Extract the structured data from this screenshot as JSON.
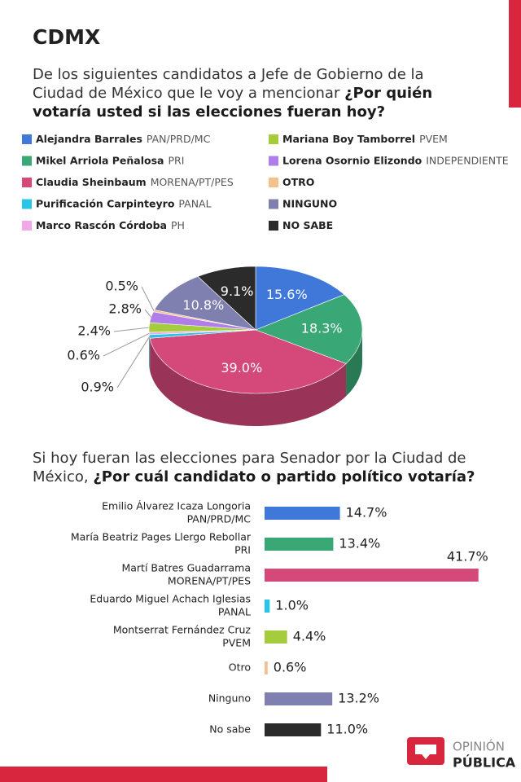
{
  "title": "CDMX",
  "logo": {
    "top": "OPINIÓN",
    "bottom": "PÚBLICA"
  },
  "chart_data": [
    {
      "type": "pie",
      "question": {
        "text": "De los siguientes candidatos a Jefe de Gobierno de la Ciudad de México que le voy a mencionar",
        "emphasis": "¿Por quién votaría usted si las elecciones fueran hoy?"
      },
      "categories": [
        "Alejandra Barrales",
        "Mikel Arriola Peñalosa",
        "Claudia Sheinbaum",
        "Purificación Carpinteyro",
        "Marco Rascón Córdoba",
        "Mariana Boy Tamborrel",
        "Lorena Osornio Elizondo",
        "OTRO",
        "NINGUNO",
        "NO SABE"
      ],
      "parties": [
        "PAN/PRD/MC",
        "PRI",
        "MORENA/PT/PES",
        "PANAL",
        "PH",
        "PVEM",
        "INDEPENDIENTE",
        null,
        null,
        null
      ],
      "values": [
        15.6,
        18.3,
        39.0,
        0.9,
        0.6,
        2.4,
        2.8,
        0.5,
        10.8,
        9.1
      ],
      "value_labels": [
        "15.6%",
        "18.3%",
        "39.0%",
        "0.9%",
        "0.6%",
        "2.4%",
        "2.8%",
        "0.5%",
        "10.8%",
        "9.1%"
      ],
      "colors": [
        "#3f78d8",
        "#3aa876",
        "#d4487a",
        "#29c5e6",
        "#f0a8e8",
        "#a5cc3c",
        "#b07ee8",
        "#f6c08e",
        "#8080b0",
        "#2b2b2b"
      ]
    },
    {
      "type": "hbar",
      "question": {
        "text": "Si hoy fueran las elecciones para Senador por la Ciudad de México,",
        "emphasis": "¿Por cuál candidato o partido político votaría?"
      },
      "categories": [
        "Emilio Álvarez Icaza Longoria",
        "María Beatriz Pages Llergo Rebollar",
        "Martí Batres Guadarrama",
        "Eduardo Miguel Achach Iglesias",
        "Montserrat Fernández Cruz",
        "Otro",
        "Ninguno",
        "No sabe"
      ],
      "parties": [
        "PAN/PRD/MC",
        "PRI",
        "MORENA/PT/PES",
        "PANAL",
        "PVEM",
        null,
        null,
        null
      ],
      "values": [
        14.7,
        13.4,
        41.7,
        1.0,
        4.4,
        0.6,
        13.2,
        11.0
      ],
      "value_labels": [
        "14.7%",
        "13.4%",
        "41.7%",
        "1.0%",
        "4.4%",
        "0.6%",
        "13.2%",
        "11.0%"
      ],
      "colors": [
        "#3f78d8",
        "#3aa876",
        "#d4487a",
        "#29c5e6",
        "#a5cc3c",
        "#f6c08e",
        "#8080b0",
        "#2b2b2b"
      ]
    }
  ]
}
